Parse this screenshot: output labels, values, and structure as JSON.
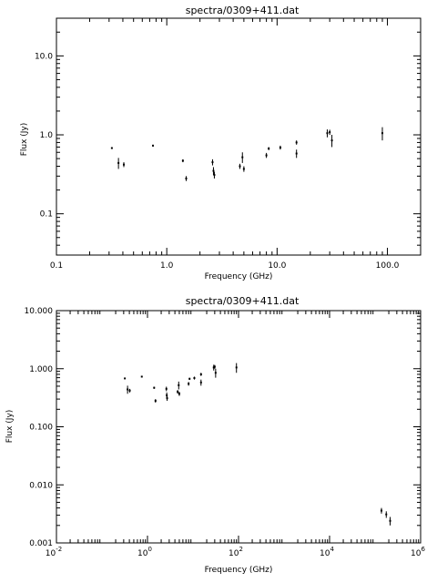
{
  "chart_data": [
    {
      "type": "scatter",
      "title": "spectra/0309+411.dat",
      "xlabel": "Frequency (GHz)",
      "ylabel": "Flux (Jy)",
      "xscale": "log",
      "yscale": "log",
      "xlim": [
        0.1,
        200
      ],
      "ylim": [
        0.03,
        30
      ],
      "x_ticks": [
        0.1,
        1.0,
        10.0,
        100.0
      ],
      "x_tick_labels": [
        "0.1",
        "1.0",
        "10.0",
        "100.0"
      ],
      "y_ticks": [
        0.1,
        1.0,
        10.0
      ],
      "y_tick_labels": [
        "0.1",
        "1.0",
        "10.0"
      ],
      "grid": false,
      "points": [
        {
          "x": 0.318,
          "y": 0.68,
          "err": 0.0
        },
        {
          "x": 0.365,
          "y": 0.44,
          "err": 0.07
        },
        {
          "x": 0.408,
          "y": 0.42,
          "err": 0.03
        },
        {
          "x": 0.75,
          "y": 0.73,
          "err": 0.02
        },
        {
          "x": 1.4,
          "y": 0.47,
          "err": 0.02
        },
        {
          "x": 1.5,
          "y": 0.28,
          "err": 0.02
        },
        {
          "x": 2.6,
          "y": 0.45,
          "err": 0.04
        },
        {
          "x": 2.65,
          "y": 0.35,
          "err": 0.04
        },
        {
          "x": 2.7,
          "y": 0.31,
          "err": 0.03
        },
        {
          "x": 4.6,
          "y": 0.4,
          "err": 0.03
        },
        {
          "x": 4.85,
          "y": 0.52,
          "err": 0.08
        },
        {
          "x": 5.0,
          "y": 0.37,
          "err": 0.03
        },
        {
          "x": 8.0,
          "y": 0.55,
          "err": 0.04
        },
        {
          "x": 8.4,
          "y": 0.67,
          "err": 0.03
        },
        {
          "x": 10.7,
          "y": 0.69,
          "err": 0.04
        },
        {
          "x": 15.0,
          "y": 0.8,
          "err": 0.05
        },
        {
          "x": 15.0,
          "y": 0.58,
          "err": 0.07
        },
        {
          "x": 28.5,
          "y": 1.05,
          "err": 0.12
        },
        {
          "x": 30.0,
          "y": 1.08,
          "err": 0.08
        },
        {
          "x": 31.4,
          "y": 0.85,
          "err": 0.15
        },
        {
          "x": 90.0,
          "y": 1.05,
          "err": 0.2
        }
      ]
    },
    {
      "type": "scatter",
      "title": "spectra/0309+411.dat",
      "xlabel": "Frequency (GHz)",
      "ylabel": "Flux (Jy)",
      "xscale": "log",
      "yscale": "log",
      "xlim": [
        0.01,
        1000000
      ],
      "ylim": [
        0.001,
        10
      ],
      "x_ticks": [
        0.01,
        1,
        100,
        10000,
        1000000
      ],
      "x_tick_labels": [
        {
          "base": "10",
          "exp": "-2"
        },
        {
          "base": "10",
          "exp": "0"
        },
        {
          "base": "10",
          "exp": "2"
        },
        {
          "base": "10",
          "exp": "4"
        },
        {
          "base": "10",
          "exp": "6"
        }
      ],
      "y_ticks": [
        0.001,
        0.01,
        0.1,
        1,
        10
      ],
      "y_tick_labels": [
        "0.001",
        "0.010",
        "0.100",
        "1.000",
        "10.000"
      ],
      "grid": false,
      "points": [
        {
          "x": 0.318,
          "y": 0.68,
          "err": 0.0
        },
        {
          "x": 0.365,
          "y": 0.44,
          "err": 0.07
        },
        {
          "x": 0.408,
          "y": 0.42,
          "err": 0.03
        },
        {
          "x": 0.75,
          "y": 0.73,
          "err": 0.02
        },
        {
          "x": 1.4,
          "y": 0.47,
          "err": 0.02
        },
        {
          "x": 1.5,
          "y": 0.28,
          "err": 0.02
        },
        {
          "x": 2.6,
          "y": 0.45,
          "err": 0.04
        },
        {
          "x": 2.65,
          "y": 0.35,
          "err": 0.04
        },
        {
          "x": 2.7,
          "y": 0.31,
          "err": 0.03
        },
        {
          "x": 4.6,
          "y": 0.4,
          "err": 0.03
        },
        {
          "x": 4.85,
          "y": 0.52,
          "err": 0.08
        },
        {
          "x": 5.0,
          "y": 0.37,
          "err": 0.03
        },
        {
          "x": 8.0,
          "y": 0.55,
          "err": 0.04
        },
        {
          "x": 8.4,
          "y": 0.67,
          "err": 0.03
        },
        {
          "x": 10.7,
          "y": 0.69,
          "err": 0.04
        },
        {
          "x": 15.0,
          "y": 0.8,
          "err": 0.05
        },
        {
          "x": 15.0,
          "y": 0.58,
          "err": 0.07
        },
        {
          "x": 28.5,
          "y": 1.05,
          "err": 0.12
        },
        {
          "x": 30.0,
          "y": 1.08,
          "err": 0.08
        },
        {
          "x": 31.4,
          "y": 0.85,
          "err": 0.15
        },
        {
          "x": 90.0,
          "y": 1.05,
          "err": 0.2
        },
        {
          "x": 138000,
          "y": 0.0036,
          "err": 0.0004
        },
        {
          "x": 176000,
          "y": 0.0031,
          "err": 0.0004
        },
        {
          "x": 214000,
          "y": 0.0024,
          "err": 0.0004
        }
      ]
    }
  ]
}
